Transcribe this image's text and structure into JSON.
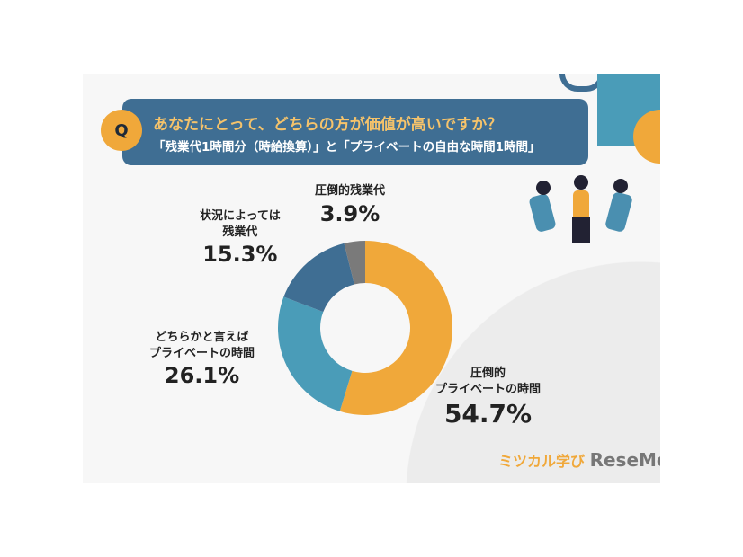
{
  "header": {
    "badge": "Q",
    "question": "あなたにとって、どちらの方が価値が高いですか？",
    "subtitle": "「残業代1時間分（時給換算）」と「プライベートの自由な時間1時間」"
  },
  "chart_data": {
    "type": "pie",
    "donut": true,
    "categories": [
      "圧倒的プライベートの時間",
      "どちらかと言えばプライベートの時間",
      "状況によっては残業代",
      "圧倒的残業代"
    ],
    "values": [
      54.7,
      26.1,
      15.3,
      3.9
    ],
    "value_labels": [
      "54.7%",
      "26.1%",
      "15.3%",
      "3.9%"
    ],
    "colors": [
      "#f0a83a",
      "#4a9cb8",
      "#3f6e93",
      "#7a7a7a"
    ],
    "title": ""
  },
  "labels": [
    {
      "t1": "圧倒的",
      "t2": "プライベートの時間",
      "v": "54.7%"
    },
    {
      "t1": "どちらかと言えば",
      "t2": "プライベートの時間",
      "v": "26.1%"
    },
    {
      "t1": "状況によっては",
      "t2": "残業代",
      "v": "15.3%"
    },
    {
      "t1": "圧倒的残業代",
      "t2": "",
      "v": "3.9%"
    }
  ],
  "logo": {
    "text": "ミツカル学び",
    "brand": "ReseMom",
    "by": "by ReseMom"
  }
}
